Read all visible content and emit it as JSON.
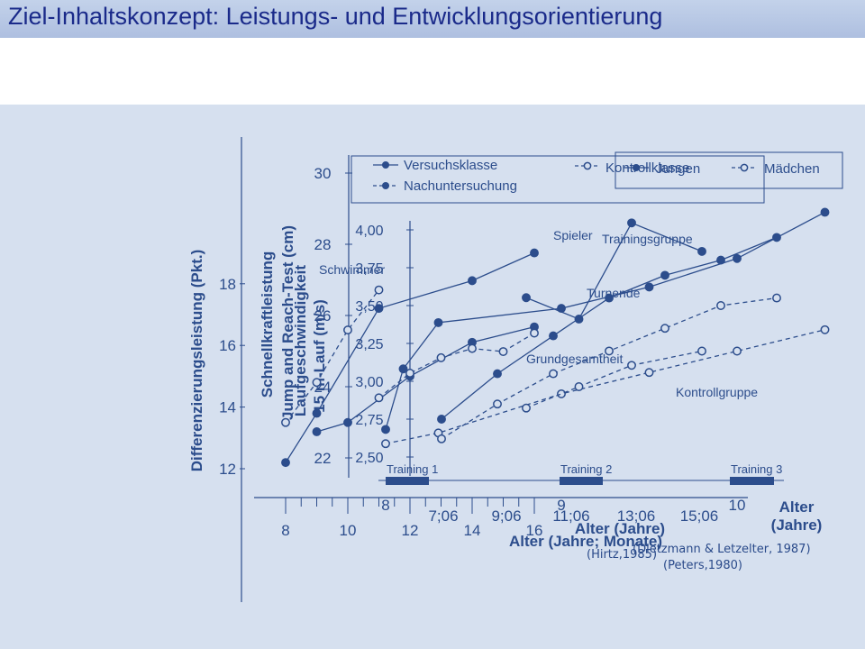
{
  "header": {
    "title": "Ziel-Inhaltskonzept: Leistungs- und Entwicklungsorientierung"
  },
  "citations": [
    "(Hirtz,1985)",
    "(Dietzmann & Letzelter, 1987)",
    "(Peters,1980)"
  ],
  "colors": {
    "title_bar": "#b9c9e6",
    "title_text": "#1a2a8a",
    "panel": "#d6e0ef",
    "ink": "#2c4d8c"
  },
  "chart_data": [
    {
      "type": "line",
      "ylabel": "Differenzierungsleistung (Pkt.)",
      "xlabel": "Alter (Jahre)",
      "yticks": [
        "12",
        "14",
        "16",
        "18"
      ],
      "xticks": [
        "8",
        "10",
        "12",
        "14",
        "16"
      ],
      "ylim": [
        11,
        20
      ],
      "xlim": [
        7,
        17
      ],
      "series_labels": [
        "Schwimmer",
        "Spieler",
        "Turnende",
        "Grundgesamtheit"
      ],
      "series": [
        {
          "label_index": 0,
          "x": [
            8,
            9,
            10,
            11
          ],
          "y": [
            13.5,
            14.8,
            16.5,
            17.8
          ],
          "dashed": true
        },
        {
          "label_index": 1,
          "x": [
            8,
            9,
            11,
            14,
            16
          ],
          "y": [
            12.2,
            13.8,
            17.2,
            18.1,
            19.0
          ],
          "dashed": false
        },
        {
          "label_index": 2,
          "x": [
            9,
            10,
            12,
            14,
            16
          ],
          "y": [
            13.2,
            13.5,
            15.0,
            16.1,
            16.6
          ],
          "dashed": false
        },
        {
          "label_index": 3,
          "x": [
            11,
            12,
            13,
            14,
            15,
            16
          ],
          "y": [
            14.3,
            15.1,
            15.6,
            15.9,
            15.8,
            16.4
          ],
          "dashed": true
        }
      ]
    },
    {
      "type": "line",
      "ylabel": "Schnellkraftleistung Jump and Reach-Test (cm)",
      "yticks": [
        "22",
        "24",
        "26",
        "28",
        "30"
      ],
      "xlabel": "Alter (Jahre)",
      "xticks": [
        "8",
        "9",
        "10"
      ],
      "legend": [
        "Versuchsklasse",
        "Nachuntersuchung",
        "Kontrollklasse"
      ],
      "series_labels": [
        "Trainingsgruppe",
        "Kontrollgruppe"
      ],
      "training_labels": [
        "Training 1",
        "Training 2",
        "Training 3"
      ],
      "series": [
        {
          "name": "Versuchsklasse",
          "x": [
            8.0,
            8.1,
            8.3,
            9.0,
            9.5,
            10.0,
            10.5
          ],
          "y": [
            22.8,
            24.5,
            25.8,
            26.2,
            26.8,
            27.6,
            28.9
          ],
          "dashed": false
        },
        {
          "name": "Nachuntersuchung",
          "x": [
            8.8,
            9.1,
            9.4,
            9.8
          ],
          "y": [
            26.5,
            25.9,
            28.6,
            27.8
          ],
          "dashed": false
        },
        {
          "name": "Kontrollklasse",
          "x": [
            8.0,
            8.3,
            9.0,
            9.5,
            10.0,
            10.5
          ],
          "y": [
            22.4,
            22.7,
            23.8,
            24.4,
            25.0,
            25.6
          ],
          "dashed": true
        },
        {
          "name": "Kontrollklasse",
          "x": [
            8.8,
            9.1,
            9.4,
            9.8
          ],
          "y": [
            23.4,
            24.0,
            24.6,
            25.0
          ],
          "dashed": true
        }
      ]
    },
    {
      "type": "line",
      "ylabel": "Laufgeschwindigkeit 15 m-Lauf (m/s)",
      "yticks": [
        "2,50",
        "2,75",
        "3,00",
        "3,25",
        "3,50",
        "3,75",
        "4,00"
      ],
      "xlabel": "Alter (Jahre; Monate)",
      "xticks": [
        "7;06",
        "9;06",
        "11;06",
        "13;06",
        "15;06"
      ],
      "legend": [
        "Jungen",
        "Mädchen"
      ],
      "series": [
        {
          "name": "Jungen",
          "x": [
            7.0,
            8.0,
            9.0,
            10.0,
            11.0,
            12.0,
            13.0
          ],
          "y": [
            2.75,
            3.05,
            3.3,
            3.55,
            3.7,
            3.8,
            3.95
          ],
          "dashed": false
        },
        {
          "name": "Mädchen",
          "x": [
            7.0,
            8.0,
            9.0,
            10.0,
            11.0,
            12.0,
            13.0
          ],
          "y": [
            2.62,
            2.85,
            3.05,
            3.2,
            3.35,
            3.5,
            3.55
          ],
          "dashed": true
        }
      ]
    }
  ]
}
